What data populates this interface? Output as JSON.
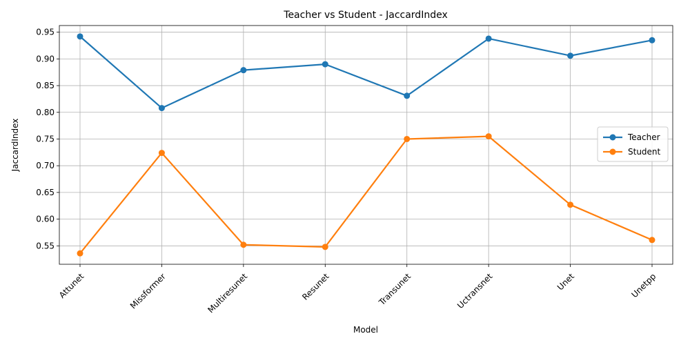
{
  "chart_data": {
    "type": "line",
    "title": "Teacher vs Student - JaccardIndex",
    "xlabel": "Model",
    "ylabel": "JaccardIndex",
    "categories": [
      "Attunet",
      "Missformer",
      "Multiresunet",
      "Resunet",
      "Transunet",
      "Uctransnet",
      "Unet",
      "Unetpp"
    ],
    "yticks": [
      "0.55",
      "0.60",
      "0.65",
      "0.70",
      "0.75",
      "0.80",
      "0.85",
      "0.90",
      "0.95"
    ],
    "ylim": [
      0.5155,
      0.9625
    ],
    "grid": true,
    "legend_position": "center-right",
    "series": [
      {
        "name": "Teacher",
        "color": "#1f77b4",
        "values": [
          0.942,
          0.808,
          0.879,
          0.89,
          0.831,
          0.938,
          0.906,
          0.935
        ]
      },
      {
        "name": "Student",
        "color": "#ff7f0e",
        "values": [
          0.536,
          0.724,
          0.552,
          0.548,
          0.75,
          0.755,
          0.627,
          0.561
        ]
      }
    ]
  }
}
